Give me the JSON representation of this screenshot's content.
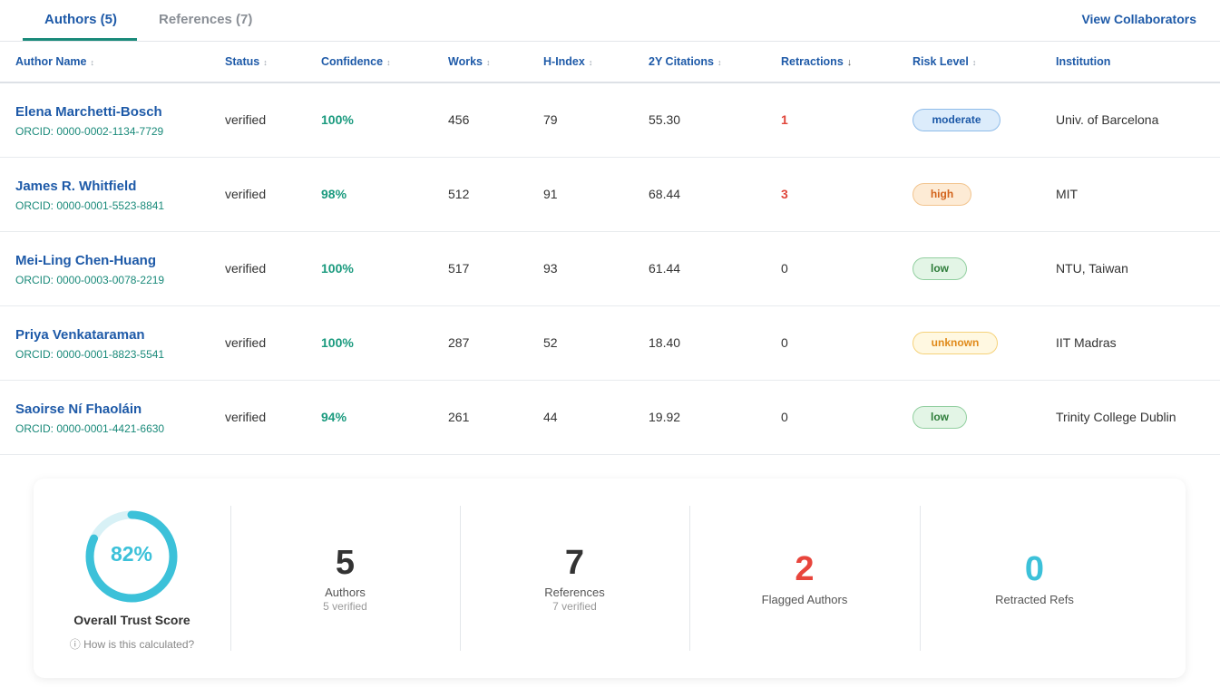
{
  "tabs": [
    {
      "label": "Authors (5)",
      "active": true
    },
    {
      "label": "References (7)",
      "active": false
    }
  ],
  "header_action": "View Collaborators",
  "columns": [
    {
      "label": "Author Name",
      "sort": "↕"
    },
    {
      "label": "Status",
      "sort": "↕"
    },
    {
      "label": "Confidence",
      "sort": "↕"
    },
    {
      "label": "Works",
      "sort": "↕"
    },
    {
      "label": "H-Index",
      "sort": "↕"
    },
    {
      "label": "2Y Citations",
      "sort": "↕"
    },
    {
      "label": "Retractions",
      "sort": "↓"
    },
    {
      "label": "Risk Level",
      "sort": "↕"
    },
    {
      "label": "Institution",
      "sort": ""
    }
  ],
  "authors": [
    {
      "name": "Elena Marchetti-Bosch",
      "orcid": "ORCID: 0000-0002-1134-7729",
      "status": "verified",
      "confidence": "100%",
      "works": "456",
      "h_index": "79",
      "citations": "55.30",
      "retractions": "1",
      "risk": "moderate",
      "institution": "Univ. of Barcelona"
    },
    {
      "name": "James R. Whitfield",
      "orcid": "ORCID: 0000-0001-5523-8841",
      "status": "verified",
      "confidence": "98%",
      "works": "512",
      "h_index": "91",
      "citations": "68.44",
      "retractions": "3",
      "risk": "high",
      "institution": "MIT"
    },
    {
      "name": "Mei-Ling Chen-Huang",
      "orcid": "ORCID: 0000-0003-0078-2219",
      "status": "verified",
      "confidence": "100%",
      "works": "517",
      "h_index": "93",
      "citations": "61.44",
      "retractions": "0",
      "risk": "low",
      "institution": "NTU, Taiwan"
    },
    {
      "name": "Priya Venkataraman",
      "orcid": "ORCID: 0000-0001-8823-5541",
      "status": "verified",
      "confidence": "100%",
      "works": "287",
      "h_index": "52",
      "citations": "18.40",
      "retractions": "0",
      "risk": "unknown",
      "institution": "IIT Madras"
    },
    {
      "name": "Saoirse Ní Fhaoláin",
      "orcid": "ORCID: 0000-0001-4421-6630",
      "status": "verified",
      "confidence": "94%",
      "works": "261",
      "h_index": "44",
      "citations": "19.92",
      "retractions": "0",
      "risk": "low",
      "institution": "Trinity College Dublin"
    }
  ],
  "summary": {
    "trust_score": "82%",
    "trust_fraction": 0.82,
    "trust_label": "Overall Trust Score",
    "how_calculated": "ⓘ How is this calculated?",
    "stats": [
      {
        "value": "5",
        "label": "Authors",
        "sub": "5 verified",
        "color": "#333333"
      },
      {
        "value": "7",
        "label": "References",
        "sub": "7 verified",
        "color": "#333333"
      },
      {
        "value": "2",
        "label": "Flagged Authors",
        "sub": "",
        "color": "#e8453c"
      },
      {
        "value": "0",
        "label": "Retracted Refs",
        "sub": "",
        "color": "#3cc1d9"
      }
    ]
  },
  "colors": {
    "accent_blue": "#1e5aa8",
    "accent_teal": "#1a8a7a",
    "ring": "#3cc1d9",
    "ring_track": "#d8f1f6",
    "flag_red": "#e0453a"
  }
}
